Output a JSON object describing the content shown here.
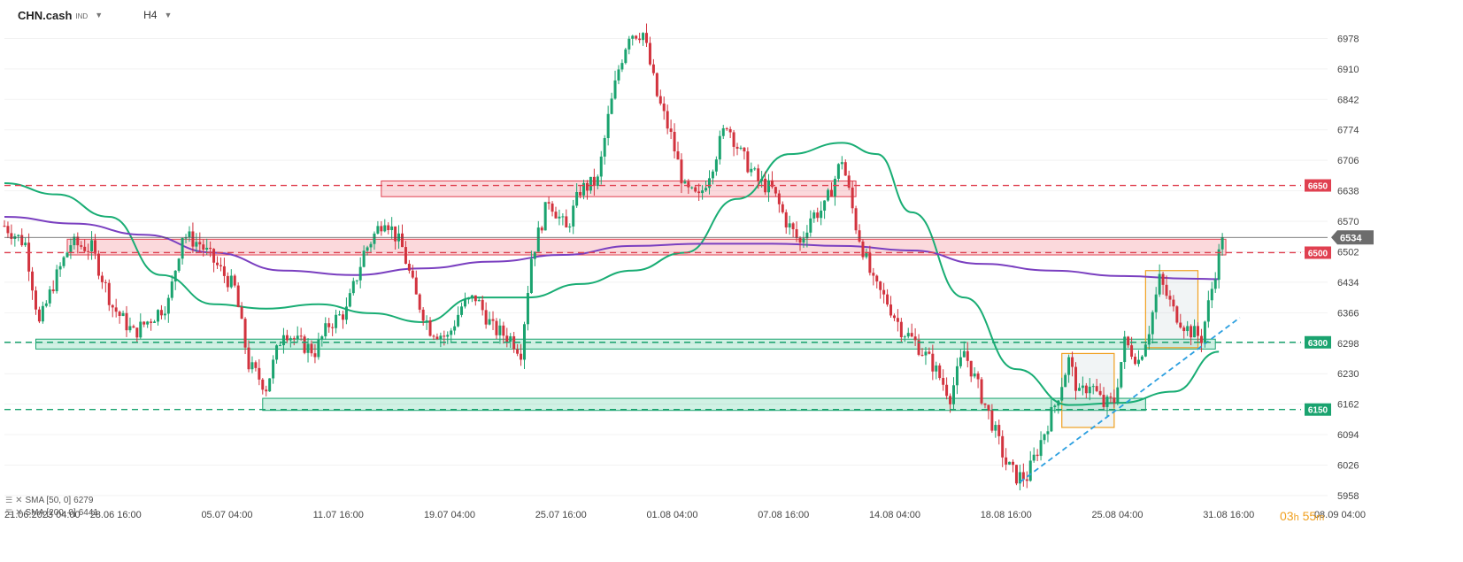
{
  "header": {
    "symbol": "CHN.cash",
    "symbol_badge": "IND",
    "timeframe": "H4"
  },
  "countdown": {
    "hours": "03",
    "h_unit": "h",
    "minutes": "55",
    "m_unit": "m"
  },
  "colors": {
    "bull": "#1aa36f",
    "bear": "#d2333e",
    "sma50": "#19ad74",
    "sma200": "#7a3fc0",
    "resistance": "#e04050",
    "support": "#1aa36f",
    "trend": "#2b9fe0",
    "box": "#f0a020"
  },
  "chart_data": {
    "type": "candlestick",
    "instrument": "CHN.cash",
    "timeframe": "H4",
    "price_axis": {
      "ticks": [
        6978,
        6910,
        6842,
        6774,
        6706,
        6638,
        6570,
        6502,
        6434,
        6366,
        6298,
        6230,
        6162,
        6094,
        6026,
        5958
      ],
      "range": [
        5948,
        7048
      ]
    },
    "time_axis": {
      "ticks": [
        "21.06.2023 04:00",
        "28.06 16:00",
        "05.07 04:00",
        "11.07 16:00",
        "19.07 04:00",
        "25.07 16:00",
        "01.08 04:00",
        "07.08 16:00",
        "14.08 04:00",
        "18.08 16:00",
        "25.08 04:00",
        "31.08 16:00",
        "08.09 04:00"
      ]
    },
    "current_price": 6534,
    "price_markers": [
      {
        "label": "6650",
        "value": 6650,
        "type": "resistance"
      },
      {
        "label": "6500",
        "value": 6500,
        "type": "resistance"
      },
      {
        "label": "6300",
        "value": 6300,
        "type": "support"
      },
      {
        "label": "6150",
        "value": 6150,
        "type": "support"
      }
    ],
    "zones": [
      {
        "type": "resistance",
        "from_index": 108,
        "to_index": 244,
        "low": 6625,
        "high": 6660
      },
      {
        "type": "resistance",
        "from_index": 18,
        "to_index": 350,
        "low": 6495,
        "high": 6530
      },
      {
        "type": "support",
        "from_index": 9,
        "to_index": 347,
        "low": 6285,
        "high": 6307
      },
      {
        "type": "support",
        "from_index": 74,
        "to_index": 327,
        "low": 6148,
        "high": 6175
      }
    ],
    "rect_boxes": [
      {
        "from_index": 303,
        "to_index": 318,
        "low": 6110,
        "high": 6275
      },
      {
        "from_index": 327,
        "to_index": 342,
        "low": 6288,
        "high": 6460
      }
    ],
    "trendline": {
      "from": {
        "index": 291,
        "value": 5988
      },
      "to": {
        "index": 354,
        "value": 6355
      }
    },
    "indicators": [
      {
        "name": "SMA [50, 0]",
        "last": "6279",
        "color": "#19ad74",
        "points": [
          [
            0,
            6655
          ],
          [
            15,
            6630
          ],
          [
            30,
            6580
          ],
          [
            45,
            6450
          ],
          [
            60,
            6385
          ],
          [
            75,
            6375
          ],
          [
            90,
            6385
          ],
          [
            105,
            6365
          ],
          [
            120,
            6345
          ],
          [
            135,
            6400
          ],
          [
            150,
            6400
          ],
          [
            165,
            6430
          ],
          [
            180,
            6460
          ],
          [
            195,
            6500
          ],
          [
            210,
            6620
          ],
          [
            225,
            6720
          ],
          [
            240,
            6745
          ],
          [
            250,
            6720
          ],
          [
            260,
            6590
          ],
          [
            275,
            6400
          ],
          [
            290,
            6240
          ],
          [
            305,
            6160
          ],
          [
            320,
            6165
          ],
          [
            335,
            6190
          ],
          [
            348,
            6279
          ]
        ]
      },
      {
        "name": "SMA [200, 0]",
        "last": "6441",
        "color": "#7a3fc0",
        "points": [
          [
            0,
            6580
          ],
          [
            20,
            6565
          ],
          [
            40,
            6540
          ],
          [
            60,
            6500
          ],
          [
            80,
            6460
          ],
          [
            100,
            6450
          ],
          [
            120,
            6465
          ],
          [
            140,
            6480
          ],
          [
            160,
            6495
          ],
          [
            180,
            6515
          ],
          [
            200,
            6520
          ],
          [
            220,
            6520
          ],
          [
            240,
            6515
          ],
          [
            260,
            6505
          ],
          [
            280,
            6475
          ],
          [
            300,
            6460
          ],
          [
            320,
            6448
          ],
          [
            340,
            6442
          ],
          [
            348,
            6441
          ]
        ]
      }
    ],
    "candles_anchor_close": [
      [
        0,
        6560
      ],
      [
        6,
        6520
      ],
      [
        10,
        6340
      ],
      [
        14,
        6430
      ],
      [
        19,
        6520
      ],
      [
        25,
        6510
      ],
      [
        31,
        6380
      ],
      [
        37,
        6320
      ],
      [
        43,
        6360
      ],
      [
        47,
        6390
      ],
      [
        51,
        6540
      ],
      [
        56,
        6520
      ],
      [
        61,
        6470
      ],
      [
        66,
        6420
      ],
      [
        70,
        6250
      ],
      [
        75,
        6200
      ],
      [
        80,
        6330
      ],
      [
        84,
        6300
      ],
      [
        89,
        6280
      ],
      [
        93,
        6340
      ],
      [
        98,
        6370
      ],
      [
        103,
        6500
      ],
      [
        109,
        6580
      ],
      [
        114,
        6510
      ],
      [
        118,
        6400
      ],
      [
        122,
        6330
      ],
      [
        127,
        6310
      ],
      [
        131,
        6380
      ],
      [
        135,
        6400
      ],
      [
        140,
        6330
      ],
      [
        145,
        6310
      ],
      [
        148,
        6280
      ],
      [
        151,
        6490
      ],
      [
        156,
        6620
      ],
      [
        161,
        6550
      ],
      [
        165,
        6640
      ],
      [
        170,
        6660
      ],
      [
        173,
        6800
      ],
      [
        176,
        6910
      ],
      [
        179,
        6990
      ],
      [
        183,
        6990
      ],
      [
        187,
        6850
      ],
      [
        191,
        6760
      ],
      [
        195,
        6640
      ],
      [
        199,
        6620
      ],
      [
        203,
        6700
      ],
      [
        207,
        6790
      ],
      [
        211,
        6720
      ],
      [
        216,
        6660
      ],
      [
        220,
        6640
      ],
      [
        224,
        6570
      ],
      [
        228,
        6520
      ],
      [
        231,
        6580
      ],
      [
        235,
        6600
      ],
      [
        240,
        6710
      ],
      [
        244,
        6560
      ],
      [
        249,
        6430
      ],
      [
        253,
        6390
      ],
      [
        257,
        6330
      ],
      [
        261,
        6300
      ],
      [
        266,
        6250
      ],
      [
        271,
        6180
      ],
      [
        275,
        6280
      ],
      [
        279,
        6200
      ],
      [
        283,
        6120
      ],
      [
        287,
        6030
      ],
      [
        290,
        6000
      ],
      [
        293,
        6000
      ],
      [
        297,
        6080
      ],
      [
        301,
        6160
      ],
      [
        305,
        6260
      ],
      [
        308,
        6180
      ],
      [
        311,
        6210
      ],
      [
        315,
        6160
      ],
      [
        318,
        6170
      ],
      [
        321,
        6300
      ],
      [
        325,
        6260
      ],
      [
        328,
        6330
      ],
      [
        331,
        6440
      ],
      [
        335,
        6370
      ],
      [
        339,
        6330
      ],
      [
        343,
        6310
      ],
      [
        346,
        6420
      ],
      [
        349,
        6534
      ]
    ]
  }
}
